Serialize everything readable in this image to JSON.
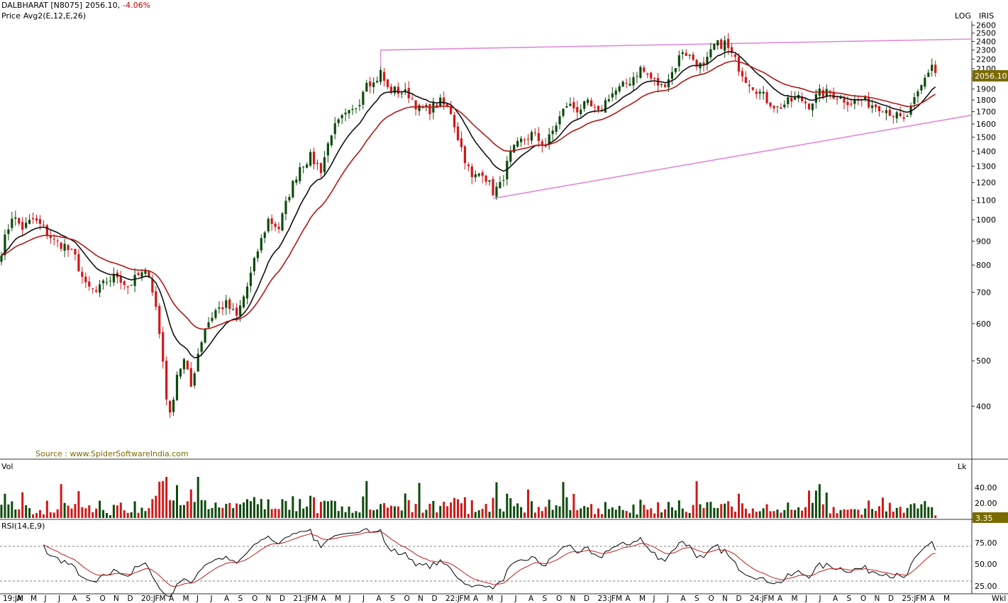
{
  "header": {
    "symbol": "DALBHARAT [N8075]",
    "last_price": "2056.10,",
    "change": "-4.06%",
    "indicator_label": "Price",
    "indicator": "Avg2(E,12,E,26)",
    "scale_label": "LOG",
    "tool_label": "IRIS"
  },
  "source": "Source : www.SpiderSoftwareIndia.com",
  "price_badge": "2056.10",
  "volume_panel": {
    "label": "Vol",
    "unit": "Lk",
    "badge": "3.35",
    "ticks": [
      "40.00",
      "20.00"
    ]
  },
  "rsi_panel": {
    "label": "RSI(14,E,9)",
    "ticks": [
      "75.00",
      "50.00",
      "25.00"
    ]
  },
  "timeframe": "Wkl",
  "colors": {
    "up": "#0d4a0d",
    "down": "#d01818",
    "ema12": "#101010",
    "ema26": "#b01818",
    "trendline": "#e089d8",
    "rsi_signal": "#c02020"
  },
  "chart_data": [
    {
      "type": "candlestick",
      "title": "DALBHARAT [N8075]",
      "yscale": "log",
      "ylim": [
        340,
        2650
      ],
      "price_ticks": [
        400,
        500,
        600,
        700,
        800,
        900,
        1000,
        1100,
        1200,
        1300,
        1400,
        1500,
        1600,
        1700,
        1800,
        1900,
        2000,
        2100,
        2200,
        2300,
        2400,
        2500,
        2600
      ],
      "x_labels": [
        "19:JM",
        "A",
        "M",
        "J",
        "J",
        "A",
        "S",
        "O",
        "N",
        "D",
        "20:J",
        "FM",
        "A",
        "M",
        "J",
        "J",
        "A",
        "S",
        "O",
        "N",
        "D",
        "21:J",
        "FM",
        "A",
        "M",
        "J",
        "J",
        "A",
        "S",
        "O",
        "N",
        "D",
        "22:J",
        "FM",
        "A",
        "M",
        "J",
        "J",
        "A",
        "S",
        "O",
        "N",
        "D",
        "23:J",
        "FM",
        "A",
        "M",
        "J",
        "J",
        "A",
        "S",
        "O",
        "N",
        "D",
        "24:J",
        "FM",
        "A",
        "M",
        "J",
        "J",
        "A",
        "S",
        "O",
        "N",
        "D",
        "25:J",
        "FM",
        "A",
        "M"
      ],
      "close_anchors": [
        [
          0,
          860
        ],
        [
          3,
          1020
        ],
        [
          6,
          960
        ],
        [
          9,
          1000
        ],
        [
          12,
          960
        ],
        [
          15,
          900
        ],
        [
          18,
          880
        ],
        [
          21,
          830
        ],
        [
          24,
          720
        ],
        [
          27,
          700
        ],
        [
          30,
          740
        ],
        [
          33,
          760
        ],
        [
          36,
          720
        ],
        [
          39,
          760
        ],
        [
          42,
          770
        ],
        [
          44,
          650
        ],
        [
          46,
          500
        ],
        [
          47,
          420
        ],
        [
          48,
          380
        ],
        [
          50,
          470
        ],
        [
          52,
          500
        ],
        [
          54,
          440
        ],
        [
          56,
          520
        ],
        [
          58,
          590
        ],
        [
          61,
          640
        ],
        [
          64,
          660
        ],
        [
          67,
          620
        ],
        [
          70,
          720
        ],
        [
          73,
          860
        ],
        [
          76,
          1000
        ],
        [
          79,
          960
        ],
        [
          82,
          1140
        ],
        [
          85,
          1300
        ],
        [
          88,
          1360
        ],
        [
          91,
          1280
        ],
        [
          94,
          1540
        ],
        [
          97,
          1640
        ],
        [
          100,
          1700
        ],
        [
          102,
          1800
        ],
        [
          104,
          2000
        ],
        [
          106,
          1950
        ],
        [
          108,
          2060
        ],
        [
          110,
          1900
        ],
        [
          113,
          1880
        ],
        [
          116,
          1850
        ],
        [
          119,
          1720
        ],
        [
          122,
          1720
        ],
        [
          125,
          1780
        ],
        [
          128,
          1700
        ],
        [
          130,
          1500
        ],
        [
          132,
          1350
        ],
        [
          134,
          1220
        ],
        [
          137,
          1270
        ],
        [
          140,
          1150
        ],
        [
          142,
          1180
        ],
        [
          145,
          1380
        ],
        [
          148,
          1470
        ],
        [
          151,
          1520
        ],
        [
          155,
          1440
        ],
        [
          158,
          1600
        ],
        [
          161,
          1760
        ],
        [
          164,
          1720
        ],
        [
          167,
          1760
        ],
        [
          170,
          1680
        ],
        [
          173,
          1840
        ],
        [
          176,
          1900
        ],
        [
          179,
          1980
        ],
        [
          182,
          2100
        ],
        [
          185,
          2000
        ],
        [
          188,
          1920
        ],
        [
          191,
          2060
        ],
        [
          194,
          2300
        ],
        [
          197,
          2200
        ],
        [
          200,
          2100
        ],
        [
          203,
          2350
        ],
        [
          206,
          2380
        ],
        [
          209,
          2180
        ],
        [
          212,
          2000
        ],
        [
          215,
          1900
        ],
        [
          218,
          1800
        ],
        [
          221,
          1730
        ],
        [
          224,
          1780
        ],
        [
          227,
          1820
        ],
        [
          230,
          1760
        ],
        [
          233,
          1860
        ],
        [
          236,
          1860
        ],
        [
          239,
          1820
        ],
        [
          242,
          1780
        ],
        [
          245,
          1800
        ],
        [
          248,
          1760
        ],
        [
          251,
          1740
        ],
        [
          254,
          1680
        ],
        [
          257,
          1620
        ],
        [
          259,
          1720
        ],
        [
          261,
          1850
        ],
        [
          263,
          2000
        ],
        [
          265,
          2150
        ],
        [
          266,
          2056
        ]
      ],
      "trendlines": [
        {
          "name": "upper",
          "from": [
            108,
            2300
          ],
          "to": [
            266,
            2420
          ]
        },
        {
          "name": "lower",
          "from": [
            140,
            1110
          ],
          "to": [
            266,
            1620
          ]
        }
      ],
      "series": [
        {
          "name": "EMA 12"
        },
        {
          "name": "EMA 26"
        }
      ]
    },
    {
      "type": "bar",
      "title": "Vol",
      "ylabel": "Lk",
      "yticks": [
        20,
        40
      ],
      "last_value": 3.35
    },
    {
      "type": "line",
      "title": "RSI(14,E,9)",
      "ylim": [
        20,
        90
      ],
      "levels": [
        30,
        70
      ],
      "yticks": [
        25,
        50,
        75
      ]
    }
  ]
}
